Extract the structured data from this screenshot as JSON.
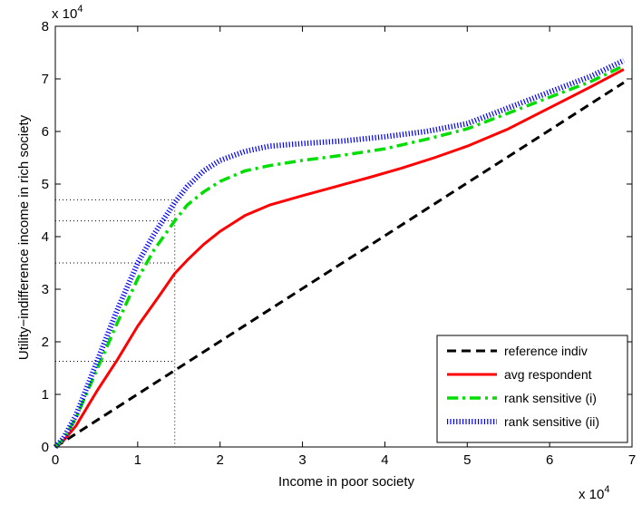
{
  "chart_data": {
    "type": "line",
    "xlabel": "Income in poor society",
    "ylabel": "Utility−indifference income in rich society",
    "x_multiplier_label": "x 10",
    "y_multiplier_label": "x 10",
    "multiplier_exponent": "4",
    "xlim": [
      0,
      7
    ],
    "ylim": [
      0,
      8
    ],
    "xticks": [
      "0",
      "1",
      "2",
      "3",
      "4",
      "5",
      "6",
      "7"
    ],
    "yticks": [
      "0",
      "1",
      "2",
      "3",
      "4",
      "5",
      "6",
      "7",
      "8"
    ],
    "legend_position": "bottom-right",
    "series": [
      {
        "name": "reference indiv",
        "color": "#000000",
        "style": "dashed",
        "x": [
          0,
          6.9
        ],
        "y": [
          0,
          6.93
        ]
      },
      {
        "name": "avg respondent",
        "color": "#ff0000",
        "style": "solid",
        "x": [
          0,
          0.1,
          0.25,
          0.5,
          0.75,
          1.0,
          1.25,
          1.45,
          1.6,
          1.8,
          2.0,
          2.3,
          2.6,
          3.0,
          3.4,
          3.8,
          4.2,
          4.6,
          5.0,
          5.5,
          6.0,
          6.5,
          6.9
        ],
        "y": [
          0,
          0.12,
          0.4,
          1.05,
          1.65,
          2.3,
          2.85,
          3.3,
          3.55,
          3.85,
          4.1,
          4.4,
          4.6,
          4.78,
          4.95,
          5.12,
          5.3,
          5.5,
          5.72,
          6.05,
          6.45,
          6.85,
          7.18
        ]
      },
      {
        "name": "rank sensitive (i)",
        "color": "#00dd00",
        "style": "dashdot",
        "x": [
          0,
          0.1,
          0.25,
          0.5,
          0.75,
          1.0,
          1.2,
          1.45,
          1.6,
          1.8,
          2.0,
          2.3,
          2.6,
          3.0,
          3.5,
          4.0,
          4.5,
          5.0,
          5.5,
          6.0,
          6.5,
          6.9
        ],
        "y": [
          0,
          0.15,
          0.55,
          1.45,
          2.35,
          3.2,
          3.75,
          4.3,
          4.6,
          4.85,
          5.05,
          5.25,
          5.35,
          5.45,
          5.55,
          5.67,
          5.85,
          6.05,
          6.35,
          6.65,
          6.95,
          7.25
        ]
      },
      {
        "name": "rank sensitive (ii)",
        "color": "#0000ff",
        "style": "dotted-thick",
        "x": [
          0,
          0.1,
          0.25,
          0.5,
          0.75,
          1.0,
          1.2,
          1.45,
          1.6,
          1.8,
          2.0,
          2.3,
          2.6,
          3.0,
          3.5,
          4.0,
          4.5,
          5.0,
          5.5,
          6.0,
          6.5,
          6.9
        ],
        "y": [
          0,
          0.17,
          0.6,
          1.6,
          2.6,
          3.5,
          4.05,
          4.65,
          4.95,
          5.25,
          5.45,
          5.62,
          5.72,
          5.77,
          5.82,
          5.9,
          6.0,
          6.15,
          6.45,
          6.75,
          7.05,
          7.35
        ]
      }
    ],
    "reference_lines": {
      "x": 1.45,
      "y_levels": [
        1.63,
        3.5,
        4.3,
        4.7
      ]
    }
  }
}
